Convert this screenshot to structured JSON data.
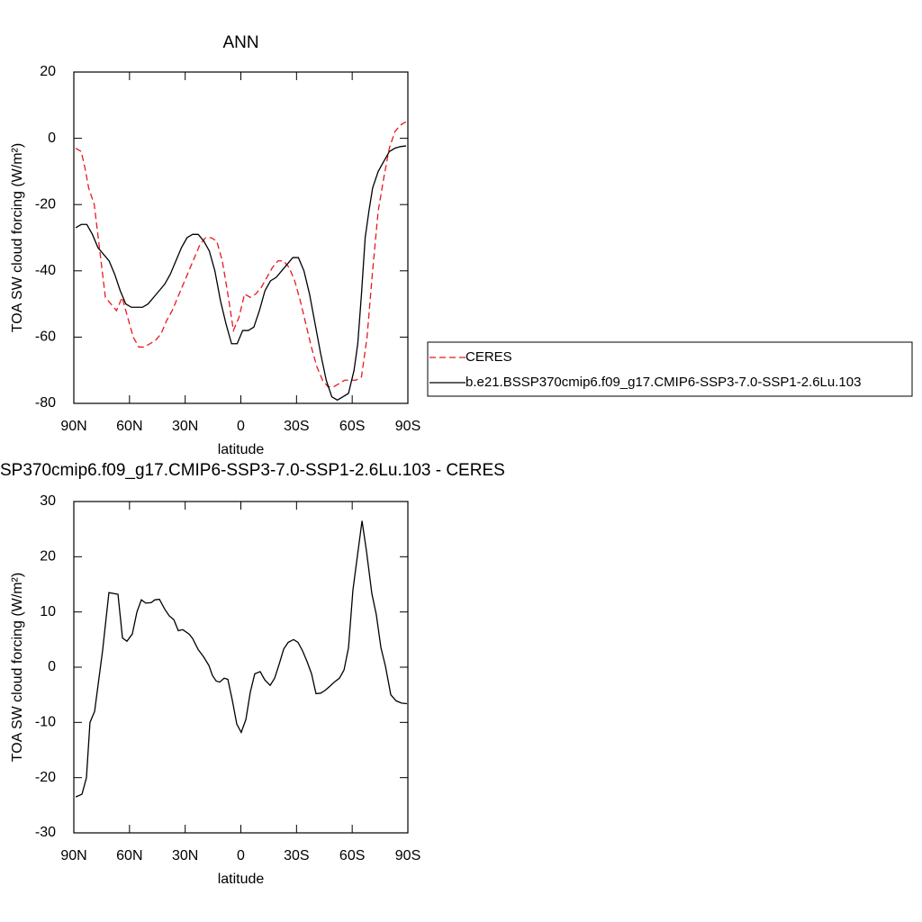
{
  "chart_data": [
    {
      "type": "line",
      "title": "ANN",
      "xlabel": "latitude",
      "ylabel": "TOA SW cloud forcing (W/m²)",
      "xlim": [
        90,
        -90
      ],
      "xticks": [
        {
          "value": 90,
          "label": "90N"
        },
        {
          "value": 60,
          "label": "60N"
        },
        {
          "value": 30,
          "label": "30N"
        },
        0,
        {
          "value": -30,
          "label": "30S"
        },
        {
          "value": -60,
          "label": "60S"
        },
        {
          "value": -90,
          "label": "90S"
        }
      ],
      "ylim": [
        -80,
        20
      ],
      "yticks": [
        -80,
        -60,
        -40,
        -20,
        0,
        20
      ],
      "legend": "right",
      "series": [
        {
          "name": "CERES",
          "color": "#e8191e",
          "dash": true,
          "x": [
            89,
            86,
            84,
            82,
            79,
            76,
            73,
            70,
            67,
            64,
            61,
            58,
            55,
            52,
            49,
            46,
            43,
            40,
            37,
            34,
            31,
            28,
            25,
            22,
            19,
            16,
            13,
            10,
            7,
            4,
            1,
            -2,
            -5,
            -8,
            -11,
            -14,
            -17,
            -20,
            -23,
            -26,
            -29,
            -32,
            -35,
            -38,
            -41,
            -44,
            -47,
            -50,
            -53,
            -56,
            -59,
            -62,
            -65,
            -68,
            -71,
            -74,
            -77,
            -80,
            -83,
            -86,
            -89
          ],
          "values": [
            -3,
            -4,
            -9,
            -15,
            -20,
            -34,
            -48,
            -50,
            -52,
            -48,
            -54,
            -60,
            -63,
            -63,
            -62,
            -61,
            -59,
            -55,
            -52,
            -48,
            -44,
            -40,
            -36,
            -32,
            -30,
            -30,
            -31,
            -37,
            -47,
            -58,
            -54,
            -47,
            -48,
            -47,
            -45,
            -42,
            -39,
            -37,
            -37,
            -39,
            -43,
            -49,
            -56,
            -63,
            -69,
            -73,
            -75,
            -75,
            -74,
            -73,
            -73,
            -73,
            -72,
            -60,
            -40,
            -22,
            -12,
            -3,
            2,
            4,
            5
          ]
        },
        {
          "name": "b.e21.BSSP370cmip6.f09_g17.CMIP6-SSP3-7.0-SSP1-2.6Lu.103",
          "color": "#000000",
          "dash": false,
          "x": [
            89,
            86,
            83,
            80,
            77,
            74,
            71,
            68,
            65,
            62,
            59,
            56,
            53,
            50,
            47,
            44,
            41,
            38,
            35,
            32,
            29,
            26,
            23,
            20,
            17,
            14,
            11,
            8,
            5,
            2,
            -1,
            -4,
            -7,
            -10,
            -13,
            -16,
            -19,
            -22,
            -25,
            -28,
            -31,
            -34,
            -37,
            -40,
            -43,
            -46,
            -49,
            -52,
            -55,
            -58,
            -61,
            -63,
            -65,
            -67,
            -69,
            -71,
            -74,
            -77,
            -80,
            -83,
            -86,
            -89
          ],
          "values": [
            -27,
            -26,
            -26,
            -29,
            -33,
            -35,
            -37,
            -41,
            -46,
            -50,
            -51,
            -51,
            -51,
            -50,
            -48,
            -46,
            -44,
            -41,
            -37,
            -33,
            -30,
            -29,
            -29,
            -31,
            -34,
            -40,
            -49,
            -56,
            -62,
            -62,
            -58,
            -58,
            -57,
            -52,
            -46,
            -43,
            -42,
            -40,
            -38,
            -36,
            -36,
            -40,
            -47,
            -56,
            -65,
            -73,
            -78,
            -79,
            -78,
            -77,
            -70,
            -62,
            -47,
            -30,
            -22,
            -15,
            -10,
            -7,
            -4,
            -3,
            -2.5,
            -2.3
          ]
        }
      ]
    },
    {
      "type": "line",
      "title": "SP370cmip6.f09_g17.CMIP6-SSP3-7.0-SSP1-2.6Lu.103 - CERES",
      "xlabel": "latitude",
      "ylabel": "TOA SW cloud forcing (W/m²)",
      "xlim": [
        90,
        -90
      ],
      "xticks": [
        {
          "value": 90,
          "label": "90N"
        },
        {
          "value": 60,
          "label": "60N"
        },
        {
          "value": 30,
          "label": "30N"
        },
        0,
        {
          "value": -30,
          "label": "30S"
        },
        {
          "value": -60,
          "label": "60S"
        },
        {
          "value": -90,
          "label": "90S"
        }
      ],
      "ylim": [
        -30,
        30
      ],
      "yticks": [
        -30,
        -20,
        -10,
        0,
        10,
        20,
        30
      ],
      "series": [
        {
          "color": "#000000",
          "dash": false,
          "x": [
            89.0,
            85.6,
            83.2,
            81.3,
            78.8,
            74.5,
            71.1,
            66.2,
            63.8,
            61.4,
            58.5,
            56.0,
            53.6,
            51.2,
            48.3,
            46.3,
            43.9,
            41.0,
            38.6,
            36.1,
            33.7,
            31.3,
            27.9,
            26.0,
            23.0,
            20.1,
            17.2,
            15.3,
            13.3,
            11.4,
            9.0,
            7.0,
            4.6,
            2.2,
            -0.2,
            -2.7,
            -5.1,
            -7.5,
            -10.4,
            -12.9,
            -15.8,
            -18.2,
            -20.6,
            -23.1,
            -25.5,
            -28.4,
            -30.8,
            -33.2,
            -35.7,
            -38.1,
            -40.5,
            -43.0,
            -45.4,
            -47.8,
            -50.7,
            -53.1,
            -55.6,
            -58.0,
            -60.4,
            -65.3,
            -67.7,
            -70.6,
            -73.0,
            -75.5,
            -77.9,
            -80.8,
            -83.7,
            -86.6,
            -89.5
          ],
          "values": [
            -23.5,
            -23,
            -20,
            -10,
            -8,
            3,
            13.5,
            13.2,
            5.3,
            4.7,
            6,
            10,
            12.2,
            11.6,
            11.7,
            12.2,
            12.3,
            10.5,
            9.3,
            8.6,
            6.6,
            6.8,
            6,
            5.2,
            3.2,
            1.9,
            0.3,
            -1.5,
            -2.5,
            -2.7,
            -2,
            -2.2,
            -6,
            -10.3,
            -11.8,
            -9.5,
            -4.5,
            -1.2,
            -0.8,
            -2.3,
            -3.3,
            -2,
            0.5,
            3.3,
            4.5,
            5,
            4.5,
            3,
            1,
            -1.2,
            -4.8,
            -4.7,
            -4.2,
            -3.5,
            -2.6,
            -2,
            -0.5,
            3.5,
            14,
            26.5,
            21,
            13.3,
            9.5,
            3.5,
            0.2,
            -5,
            -6.1,
            -6.5,
            -6.6
          ]
        }
      ]
    }
  ]
}
